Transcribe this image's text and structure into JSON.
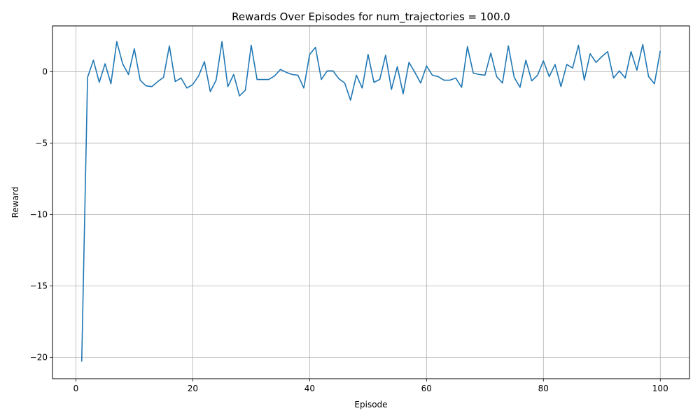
{
  "chart_data": {
    "type": "line",
    "title": "Rewards Over Episodes for num_trajectories = 100.0",
    "xlabel": "Episode",
    "ylabel": "Reward",
    "xlim": [
      -4,
      105
    ],
    "ylim": [
      -21.5,
      3.2
    ],
    "xticks": [
      0,
      20,
      40,
      60,
      80,
      100
    ],
    "yticks": [
      -20,
      -15,
      -10,
      -5,
      0
    ],
    "grid": true,
    "line_color": "#1f77b4",
    "series": [
      {
        "x": [
          1,
          2,
          3,
          4,
          5,
          6,
          7,
          8,
          9,
          10,
          11,
          12,
          13,
          14,
          15,
          16,
          17,
          18,
          19,
          20,
          21,
          22,
          23,
          24,
          25,
          26,
          27,
          28,
          29,
          30,
          31,
          32,
          33,
          34,
          35,
          36,
          37,
          38,
          39,
          40,
          41,
          42,
          43,
          44,
          45,
          46,
          47,
          48,
          49,
          50,
          51,
          52,
          53,
          54,
          55,
          56,
          57,
          58,
          59,
          60,
          61,
          62,
          63,
          64,
          65,
          66,
          67,
          68,
          69,
          70,
          71,
          72,
          73,
          74,
          75,
          76,
          77,
          78,
          79,
          80,
          81,
          82,
          83,
          84,
          85,
          86,
          87,
          88,
          89,
          90,
          91,
          92,
          93,
          94,
          95,
          96,
          97,
          98,
          99,
          100
        ],
        "values": [
          -20.3,
          -0.4,
          0.8,
          -0.75,
          0.55,
          -0.85,
          2.1,
          0.55,
          -0.2,
          1.6,
          -0.6,
          -1.0,
          -1.05,
          -0.7,
          -0.4,
          1.8,
          -0.7,
          -0.45,
          -1.15,
          -0.9,
          -0.3,
          0.7,
          -1.4,
          -0.6,
          2.1,
          -1.05,
          -0.2,
          -1.7,
          -1.3,
          1.85,
          -0.55,
          -0.55,
          -0.55,
          -0.3,
          0.15,
          -0.05,
          -0.2,
          -0.25,
          -1.15,
          1.2,
          1.7,
          -0.55,
          0.05,
          0.05,
          -0.5,
          -0.8,
          -2.0,
          -0.25,
          -1.15,
          1.2,
          -0.75,
          -0.55,
          1.15,
          -1.25,
          0.35,
          -1.55,
          0.65,
          -0.05,
          -0.8,
          0.4,
          -0.25,
          -0.35,
          -0.6,
          -0.6,
          -0.45,
          -1.1,
          1.75,
          -0.1,
          -0.2,
          -0.25,
          1.3,
          -0.35,
          -0.8,
          1.8,
          -0.4,
          -1.1,
          0.8,
          -0.65,
          -0.25,
          0.75,
          -0.35,
          0.5,
          -1.05,
          0.5,
          0.25,
          1.85,
          -0.6,
          1.25,
          0.65,
          1.05,
          1.4,
          -0.45,
          0.05,
          -0.45,
          1.4,
          0.1,
          1.9,
          -0.35,
          -0.85,
          1.45
        ]
      }
    ]
  }
}
